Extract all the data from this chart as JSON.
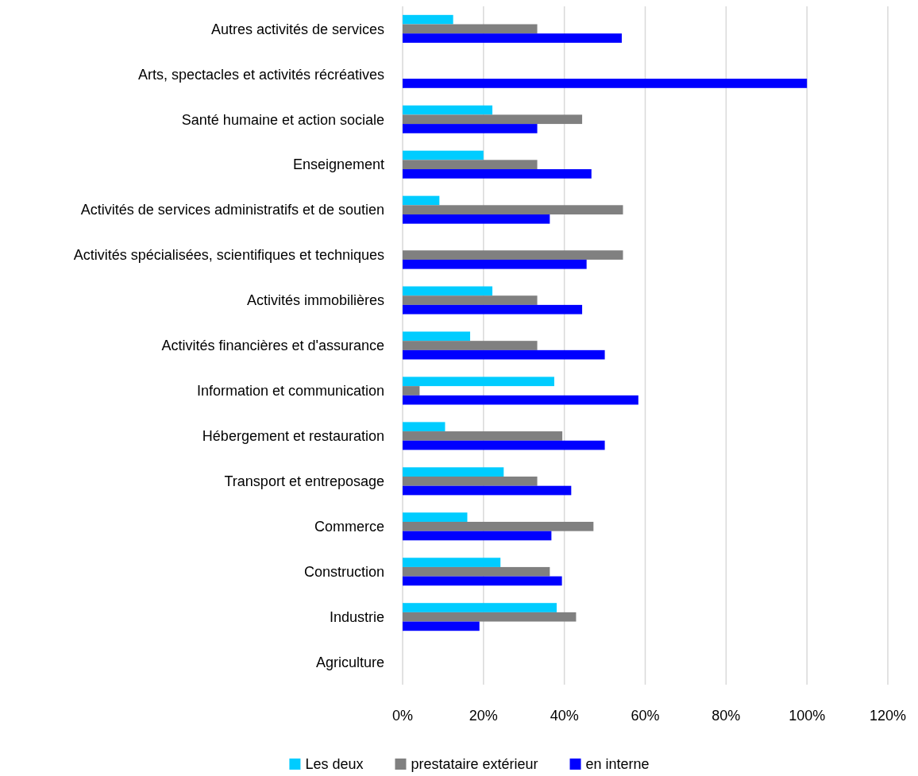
{
  "chart_data": {
    "type": "bar",
    "orientation": "horizontal",
    "categories": [
      "Autres activités de services",
      "Arts, spectacles et activités récréatives",
      "Santé humaine et action sociale",
      "Enseignement",
      "Activités de services administratifs et de soutien",
      "Activités spécialisées, scientifiques et techniques",
      "Activités immobilières",
      "Activités financières et d'assurance",
      "Information et communication",
      "Hébergement et restauration",
      "Transport et entreposage",
      "Commerce",
      "Construction",
      "Industrie",
      "Agriculture"
    ],
    "series": [
      {
        "name": "Les deux",
        "color": "#00ccff",
        "values": [
          12.5,
          null,
          22.2,
          20,
          9.1,
          null,
          22.2,
          16.7,
          37.5,
          10.5,
          25,
          16,
          24.2,
          38.1,
          null
        ]
      },
      {
        "name": "prestataire extérieur",
        "color": "#808080",
        "values": [
          33.3,
          null,
          44.4,
          33.3,
          54.5,
          54.5,
          33.3,
          33.3,
          4.2,
          39.5,
          33.3,
          47.2,
          36.4,
          42.9,
          null
        ]
      },
      {
        "name": "en interne",
        "color": "#0000ff",
        "values": [
          54.2,
          100,
          33.3,
          46.7,
          36.4,
          45.5,
          44.4,
          50,
          58.3,
          50,
          41.7,
          36.8,
          39.4,
          19,
          null
        ]
      }
    ],
    "xlim": [
      0,
      120
    ],
    "xticks": [
      {
        "value": 0,
        "label": "0%"
      },
      {
        "value": 20,
        "label": "20%"
      },
      {
        "value": 40,
        "label": "40%"
      },
      {
        "value": 60,
        "label": "60%"
      },
      {
        "value": 80,
        "label": "80%"
      },
      {
        "value": 100,
        "label": "100%"
      },
      {
        "value": 120,
        "label": "120%"
      }
    ],
    "grid": "x",
    "legend": "bottom"
  }
}
